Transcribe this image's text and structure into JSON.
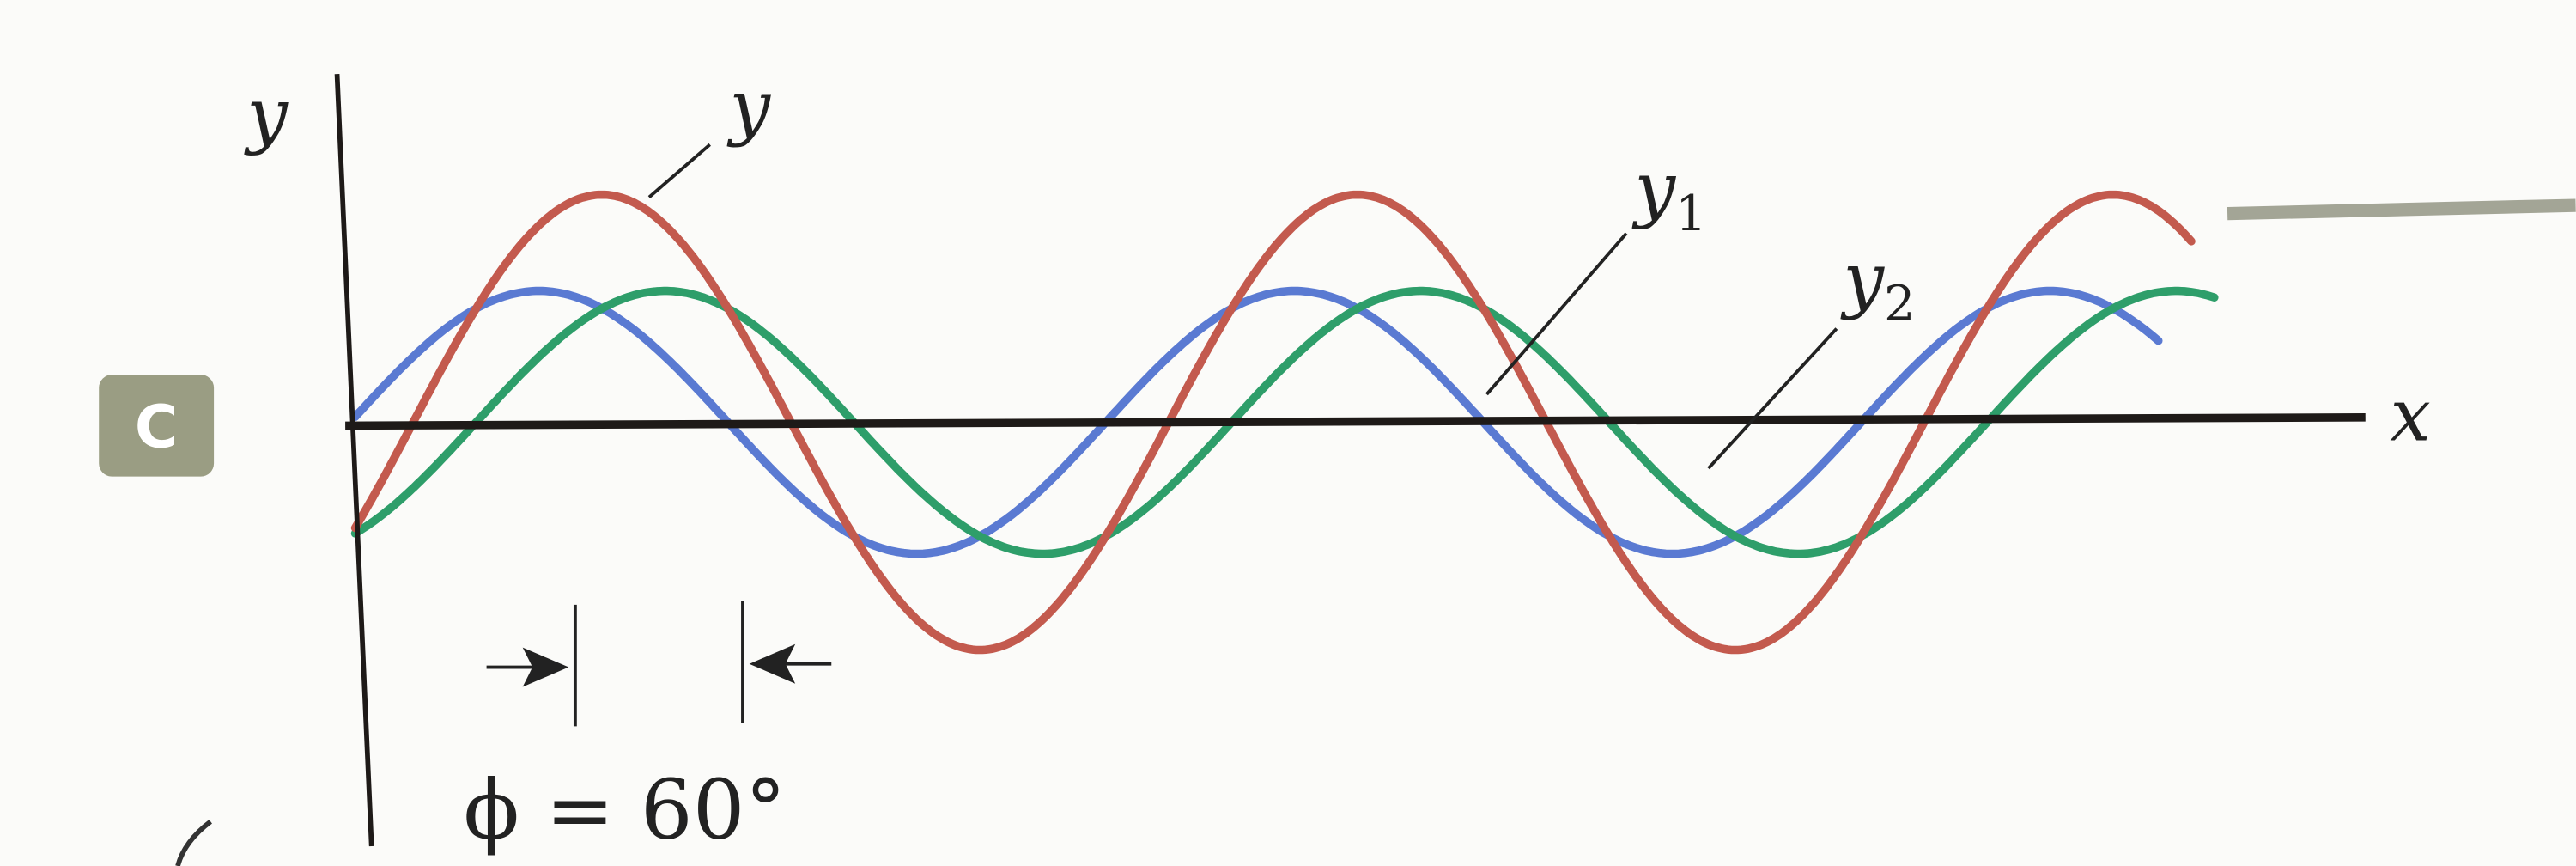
{
  "panel_badge": "C",
  "axes": {
    "y_label": "y",
    "x_label": "x"
  },
  "waves": [
    {
      "id": "y1",
      "label": "y",
      "sub": "1",
      "color": "#5a7ad2",
      "amplitude": 1,
      "phase_deg": 0
    },
    {
      "id": "y2",
      "label": "y",
      "sub": "2",
      "color": "#2e9e6a",
      "amplitude": 1,
      "phase_deg": -60
    },
    {
      "id": "y",
      "label": "y",
      "sub": "",
      "color": "#c35a4e",
      "amplitude": 1.732,
      "phase_deg": -30
    }
  ],
  "phase_annotation": {
    "text": "ϕ = 60°",
    "phase_deg": 60
  },
  "colors": {
    "axis": "#1e1a18",
    "badge": "#9a9d83",
    "rule": "#a3a596"
  }
}
